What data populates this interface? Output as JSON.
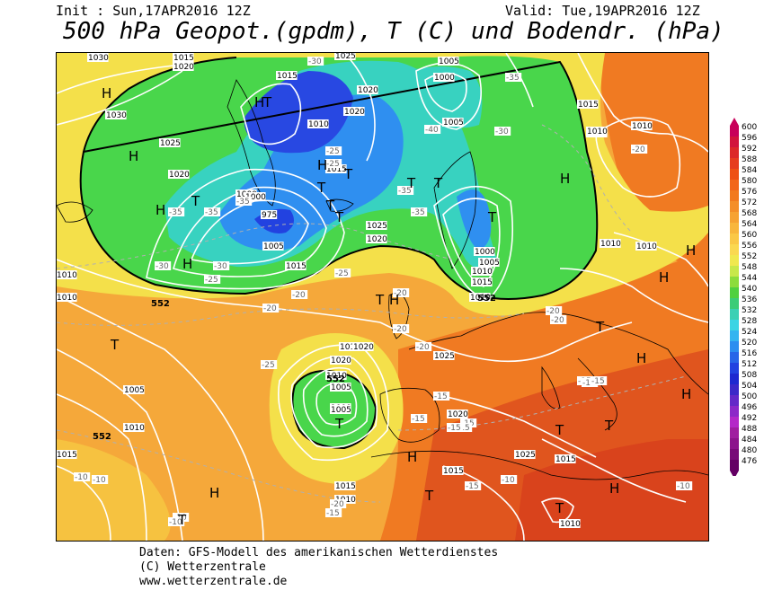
{
  "header": {
    "init": "Init : Sun,17APR2016 12Z",
    "valid": "Valid: Tue,19APR2016 12Z",
    "title": "500 hPa Geopot.(gpdm), T (C) und Bodendr. (hPa)"
  },
  "footer": {
    "line1": "Daten: GFS-Modell des amerikanischen Wetterdienstes",
    "line2": "(C) Wetterzentrale",
    "line3": "www.wetterzentrale.de"
  },
  "legend": {
    "levels": [
      "600",
      "596",
      "592",
      "588",
      "584",
      "580",
      "576",
      "572",
      "568",
      "564",
      "560",
      "556",
      "552",
      "548",
      "544",
      "540",
      "536",
      "532",
      "528",
      "524",
      "520",
      "516",
      "512",
      "508",
      "504",
      "500",
      "496",
      "492",
      "488",
      "484",
      "480",
      "476"
    ],
    "colors": [
      "#c8005a",
      "#d2143c",
      "#dc2828",
      "#e63c1e",
      "#ee5014",
      "#f2661a",
      "#f27a1e",
      "#f48e28",
      "#f6a232",
      "#f8b63c",
      "#fac846",
      "#fad850",
      "#f0e84e",
      "#c8e84a",
      "#8cdc3c",
      "#50d040",
      "#3ccc78",
      "#3cd0b4",
      "#3cd4e4",
      "#34b4f0",
      "#2c8ef0",
      "#2866e8",
      "#2242e0",
      "#1e28d0",
      "#3c28c8",
      "#6428c8",
      "#8c28c8",
      "#b428c8",
      "#a01ea0",
      "#8c148c",
      "#780a78",
      "#640064"
    ],
    "palette": {
      "green": "#49d64b",
      "cyan": "#38d2c0",
      "blue": "#2f8ff0",
      "deepblue": "#2848e2",
      "yellow": "#f4e04a",
      "orange": "#f5a83a",
      "deeporange": "#f07a22",
      "red": "#d9431c"
    }
  },
  "map": {
    "pressure_labels": [
      "1030",
      "1015",
      "1020",
      "1025",
      "1005",
      "1000",
      "1020",
      "1015",
      "1030",
      "1025",
      "1020",
      "1010",
      "1020",
      "1015",
      "1000",
      "1010",
      "1005",
      "1015",
      "1010",
      "975",
      "1000",
      "1005",
      "1010",
      "1015",
      "1020",
      "1025",
      "1000",
      "1005",
      "1010",
      "1015",
      "1010",
      "1015",
      "1020",
      "1005",
      "1010",
      "1025",
      "1000",
      "1005",
      "1010",
      "1015",
      "1020",
      "1020",
      "1025",
      "1015",
      "1010",
      "1010",
      "1015",
      "1010",
      "1005",
      "1010",
      "1015",
      "1010",
      "1010"
    ],
    "temperature_labels": [
      "-30",
      "-35",
      "-40",
      "-35",
      "-30",
      "-35",
      "-35",
      "-30",
      "-30",
      "-35",
      "-25",
      "-25",
      "-20",
      "-20",
      "-25",
      "-25",
      "-35",
      "-20",
      "-20",
      "-20",
      "-20",
      "-20",
      "-15",
      "-15",
      "-15",
      "-15",
      "-20",
      "-15",
      "-15",
      "-10",
      "-10",
      "-10",
      "-15",
      "-20",
      "-15",
      "-10",
      "-10",
      "-10",
      "-20",
      "-25",
      "-15",
      "-15"
    ],
    "geopotential_labels": [
      "552",
      "552",
      "552",
      "552"
    ],
    "highs": [
      "H",
      "H",
      "H",
      "H",
      "H",
      "H",
      "H",
      "H",
      "H",
      "H",
      "H",
      "H",
      "H",
      "H",
      "H"
    ],
    "lows": [
      "T",
      "T",
      "T",
      "T",
      "T",
      "T",
      "T",
      "T",
      "T",
      "T",
      "T",
      "T",
      "T",
      "T",
      "T",
      "T",
      "T",
      "T"
    ]
  }
}
